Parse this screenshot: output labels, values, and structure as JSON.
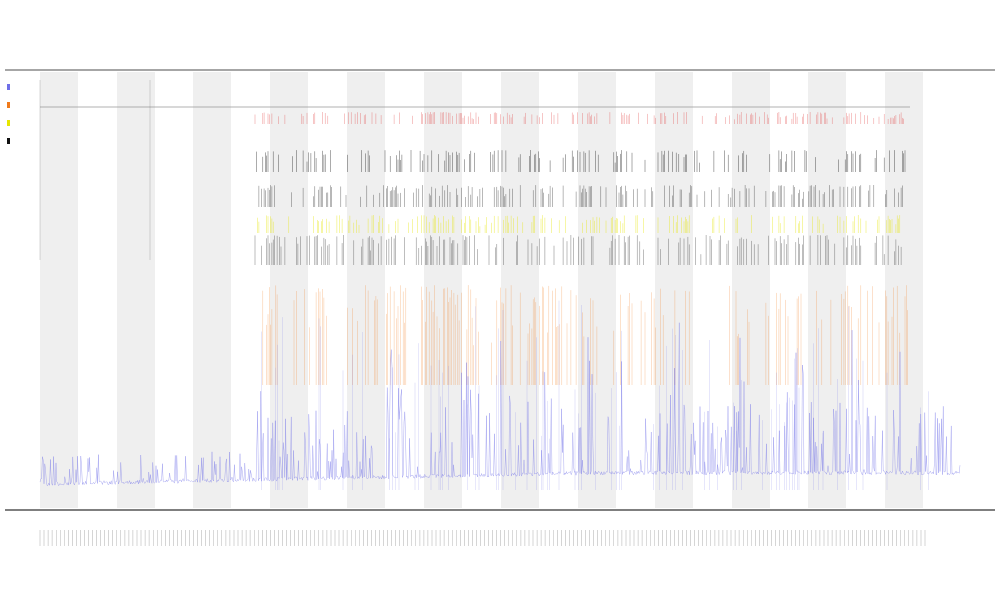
{
  "chart_data": {
    "type": "line",
    "title": "",
    "subtitle_lines": [
      "",
      ""
    ],
    "xlabel": "",
    "ylabel": "",
    "grid": false,
    "legend_position": "top-left",
    "x_range": [
      0,
      1
    ],
    "y_range": [
      0,
      1
    ],
    "band_count": 12,
    "tick_label_count": 220,
    "colors": {
      "series_line": "#6f6fe8",
      "series_spike": "#f07a1a",
      "marker_black": "#111111",
      "marker_yellow": "#e6e600",
      "marker_red": "#e03030",
      "band": "#efefef",
      "axis": "#555555"
    },
    "series": [
      {
        "name": "",
        "color": "#6f6fe8"
      },
      {
        "name": "",
        "color": "#f07a1a"
      },
      {
        "name": "",
        "color": "#e6e600"
      },
      {
        "name": "",
        "color": "#111111"
      }
    ],
    "annotation_tracks": [
      "red",
      "black",
      "black",
      "yellow",
      "black",
      "orange"
    ]
  }
}
